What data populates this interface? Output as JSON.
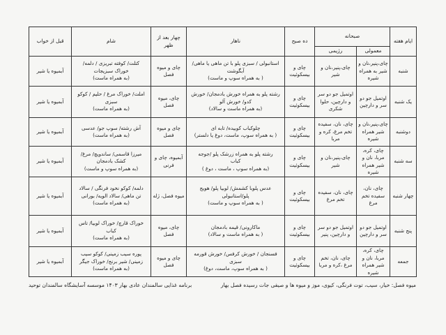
{
  "header": {
    "day": "ایام هفته",
    "breakfast": "صبحانه",
    "breakfast_normal": "معمولی",
    "breakfast_diet": "رژیمی",
    "morning_snack": "ده صبح",
    "lunch": "ناهار",
    "afternoon_snack": "چهار بعد از ظهر",
    "dinner": "شام",
    "bedtime": "قبل از خواب"
  },
  "rows": [
    {
      "day": "شنبه",
      "normal": "چای،پنیر،نان و شیر به همراه شیره",
      "diet": "چای،پنیر،نان و شیر",
      "morning": "چای و بیسکوئیت",
      "lunch": [
        "استانبولی / سبزی پلو با تن ماهی یا ماهی/",
        "آبگوشت",
        "( به همراه سوپ و ماست)"
      ],
      "afternoon": "چای و میوه فصل",
      "dinner": [
        "کتلت/ کوفته تبریزی / دلمه/",
        "خوراک سبزیجات",
        "(به همراه ماست)"
      ],
      "bedtime": "آبمیوه یا شیر"
    },
    {
      "day": "یک شنبه",
      "normal": "اوتمیل جو دو سر و دارچین",
      "diet": "اوتمیل جو دو سر و دارچین، حلوا شکری",
      "morning": "چای و بیسکوئیت",
      "lunch": [
        "رشته پلو به همراه خورش بادمجان/ خورش",
        "کدو/ خورش آلو",
        "(به همراه ماست و سالاد)"
      ],
      "afternoon": "چای، میوه فصل",
      "dinner": [
        "املت/ خوراک مرغ / حلیم / کوکو",
        "سبزی",
        "(به همراه ماست)"
      ],
      "bedtime": "آبمیوه یا شیر"
    },
    {
      "day": "دوشنبه",
      "normal": "چای،پنیر،نان و شیر همراه شیره",
      "diet": "چای، نان، سفیده تخم مرغ، کره و مربا",
      "morning": "چای و بیسکوئیت",
      "lunch": [
        "چلوکباب کوبیده/ تابه ای",
        "( به همراه سوپ، ماست، دوغ یا دلستر)"
      ],
      "afternoon": "چای و میوه فصل",
      "dinner": [
        "آش رشته/ سوپ جو/ عدسی",
        "(به همراه ماست)"
      ],
      "bedtime": "آبمیوه یا شیر"
    },
    {
      "day": "سه شنبه",
      "normal": "چای، کره، مربا، نان و شیر همراه شیره",
      "diet": "چای،پنیر،نان و شیر",
      "morning": "چای و بیسکوئیت",
      "lunch": [
        "رشته پلو به همراه زرشک پلو /جوجه",
        "کباب",
        "(به همراه سوپ ، ماست ، دوغ )"
      ],
      "afternoon": "آبمیوه، چای و فرنی",
      "dinner": [
        "میرزا قاسمی/ ساندویچ/ مرغ/",
        "کشک بادمجان",
        "(به همراه سوپ و ماست)"
      ],
      "bedtime": "آبمیوه یا شیر"
    },
    {
      "day": "چهار شنبه",
      "normal": "چای، نان، سفیده تخم مرغ",
      "diet": "چای، نان، سفیده تخم مرغ",
      "morning": "چای و بیسکوئیت",
      "lunch": [
        "عدس پلوبا کشمش/ لوبیا پلو/ هویج",
        "پلو/استانبولی",
        "( به همراه سوپ و ماست)"
      ],
      "afternoon": "میوه فصل، ژله",
      "dinner": [
        "دلمه/ کوکو نخود فرنگی / سالاد",
        "تن ماهی/ سالاد الویه/ بورانی",
        "(به همراه ماست)"
      ],
      "bedtime": "آبمیوه یا شیر"
    },
    {
      "day": "پنج شنبه",
      "normal": "اوتمیل جو دو سر و دارچین",
      "diet": "اوتمیل جو دو سر و دارچین، پنیر",
      "morning": "چای و بیسکوئیت",
      "lunch": [
        "ماکارونی/ قیمه بادمجان",
        "( به همراه ماست و سالاد)"
      ],
      "afternoon": "چای، میوه فصل",
      "dinner": [
        "خوراک قارچ/ خوراک لوبیا/ تاس",
        "کباب",
        "(به همراه ماست)"
      ],
      "bedtime": "آبمیوه یا شیر"
    },
    {
      "day": "جمعه",
      "normal": "چای، کره، مربا، نان و شیر همراه شیره",
      "diet": "چای، نان، تخم مرغ ،کره و مربا",
      "morning": "چای و بیسکوئیت",
      "lunch": [
        "فسنجان / خورش کرفس/ خورش قورمه",
        "سبزی",
        "( به همراه سوپ، ماست، دوغ)"
      ],
      "afternoon": "چای و میوه فصل",
      "dinner": [
        "پوره سیب زمینی/ کوکو سیب",
        "زمینی/ شیر برنج/ خوراک جیگر",
        "(به همراه ماست)"
      ],
      "bedtime": "آبمیوه یا شیر"
    }
  ],
  "footer": {
    "fruits_note": "میوه فصل: خیار، سیب، توت فرنگی، کیوی، موز و میوه ها و صیفی جات رسیده فصل بهار",
    "program_title": "برنامه غذایی سالمندان عادی  بهار ۱۴۰۳ موسسه آسایشگاه سالمندان توحید"
  }
}
